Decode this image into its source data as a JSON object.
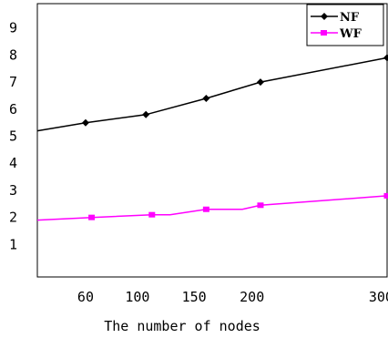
{
  "chart_data": {
    "type": "line",
    "title": "",
    "xlabel": "The number of nodes",
    "ylabel": "",
    "xlim": [
      20,
      310
    ],
    "ylim": [
      -0.2,
      9.9
    ],
    "xticks": [
      60,
      100,
      150,
      200,
      300
    ],
    "xtick_positions": [
      60,
      103,
      150,
      198,
      305
    ],
    "xtick_labels": [
      "60",
      "100",
      "150",
      "200",
      "300"
    ],
    "yticks": [
      1,
      2,
      3,
      4,
      5,
      6,
      7,
      8,
      9
    ],
    "ytick_labels": [
      "1",
      "2",
      "3",
      "4",
      "5",
      "6",
      "7",
      "8",
      "9"
    ],
    "grid": false,
    "legend_position": "top-right",
    "series": [
      {
        "name": "NF",
        "color": "#000000",
        "marker": "diamond",
        "x": [
          20,
          60,
          110,
          160,
          205,
          310
        ],
        "y": [
          5.2,
          5.5,
          5.8,
          6.4,
          7.0,
          7.9
        ],
        "marker_indices": [
          1,
          2,
          3,
          4,
          5
        ]
      },
      {
        "name": "WF",
        "color": "#ff00ff",
        "marker": "square",
        "x": [
          20,
          65,
          115,
          130,
          160,
          190,
          205,
          310
        ],
        "y": [
          1.9,
          2.0,
          2.1,
          2.1,
          2.3,
          2.3,
          2.45,
          2.8
        ],
        "marker_indices": [
          1,
          2,
          4,
          6,
          7
        ]
      }
    ]
  }
}
